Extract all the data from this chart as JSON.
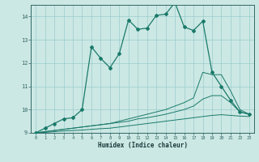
{
  "xlabel": "Humidex (Indice chaleur)",
  "background_color": "#cce8e4",
  "grid_color": "#99cccc",
  "line_color": "#1a7a6a",
  "x_main": [
    0,
    1,
    2,
    3,
    4,
    5,
    6,
    7,
    8,
    9,
    10,
    11,
    12,
    13,
    14,
    15,
    16,
    17,
    18,
    19,
    20,
    21,
    22,
    23
  ],
  "y_main": [
    9.0,
    9.2,
    9.4,
    9.6,
    9.65,
    10.0,
    12.7,
    12.2,
    11.8,
    12.4,
    13.85,
    13.45,
    13.5,
    14.05,
    14.1,
    14.6,
    13.55,
    13.4,
    13.8,
    11.6,
    11.0,
    10.4,
    9.9,
    9.8
  ],
  "y_line2": [
    9.0,
    9.05,
    9.1,
    9.15,
    9.2,
    9.25,
    9.3,
    9.35,
    9.4,
    9.5,
    9.6,
    9.7,
    9.8,
    9.9,
    10.0,
    10.15,
    10.3,
    10.5,
    11.6,
    11.5,
    11.5,
    10.8,
    10.0,
    9.8
  ],
  "y_line3": [
    9.0,
    9.05,
    9.1,
    9.15,
    9.2,
    9.25,
    9.3,
    9.35,
    9.4,
    9.45,
    9.5,
    9.6,
    9.65,
    9.72,
    9.8,
    9.9,
    10.0,
    10.15,
    10.45,
    10.6,
    10.6,
    10.3,
    9.9,
    9.8
  ],
  "y_line4": [
    9.0,
    9.02,
    9.05,
    9.08,
    9.1,
    9.12,
    9.15,
    9.18,
    9.2,
    9.25,
    9.3,
    9.35,
    9.4,
    9.45,
    9.5,
    9.55,
    9.6,
    9.65,
    9.7,
    9.75,
    9.78,
    9.75,
    9.72,
    9.7
  ],
  "ylim": [
    9,
    14.5
  ],
  "xlim": [
    -0.5,
    23.5
  ],
  "yticks": [
    9,
    10,
    11,
    12,
    13,
    14
  ],
  "xticks": [
    0,
    1,
    2,
    3,
    4,
    5,
    6,
    7,
    8,
    9,
    10,
    11,
    12,
    13,
    14,
    15,
    16,
    17,
    18,
    19,
    20,
    21,
    22,
    23
  ]
}
